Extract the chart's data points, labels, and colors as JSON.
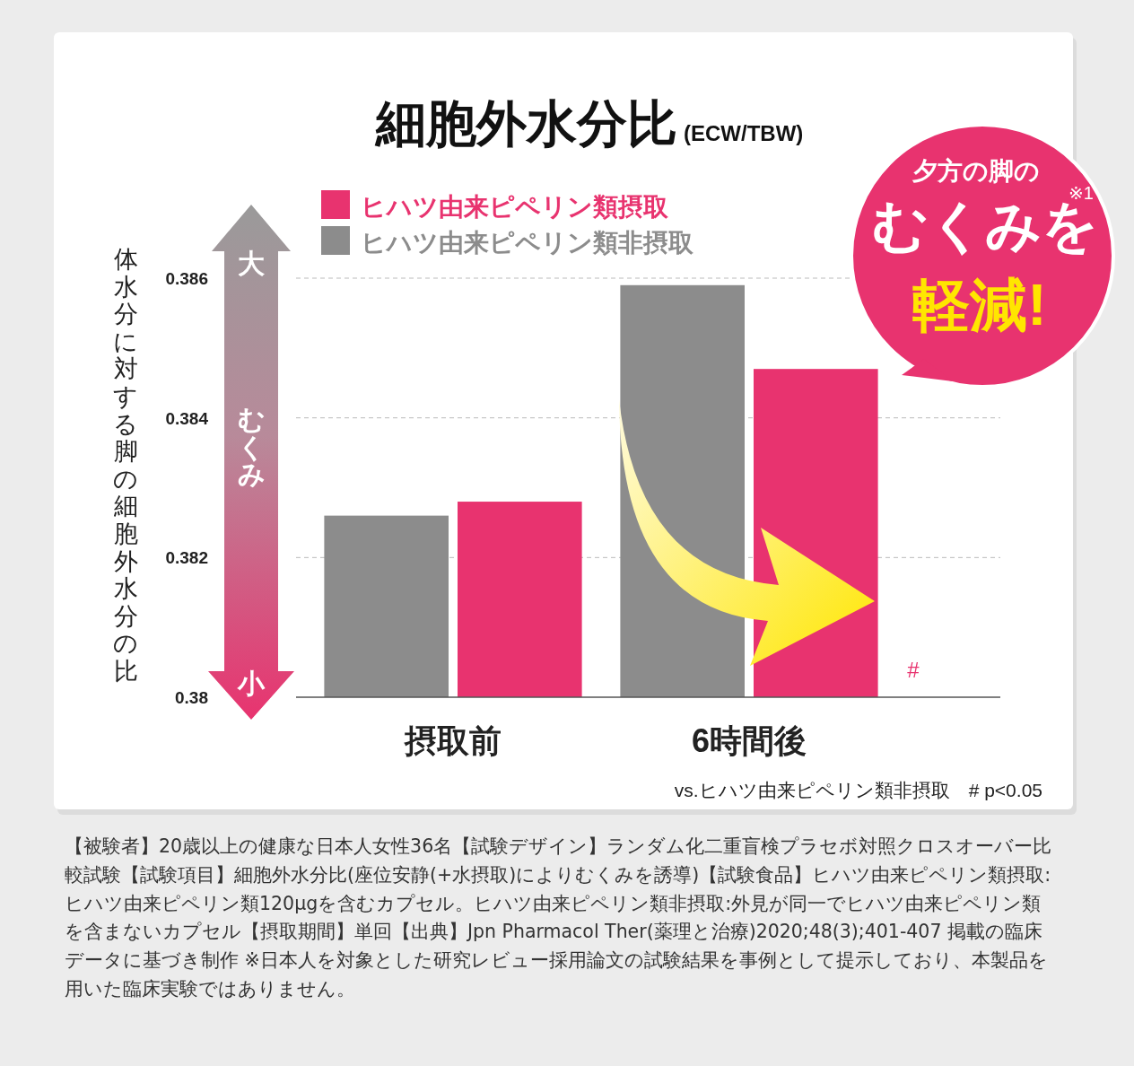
{
  "chart_data": {
    "type": "bar",
    "title": "細胞外水分比",
    "subtitle": "(ECW/TBW)",
    "ylabel": "体水分に対する脚の細胞外水分の比",
    "categories": [
      "摂取前",
      "6時間後"
    ],
    "series": [
      {
        "name": "ヒハツ由来ピペリン類非摂取",
        "color": "#8c8c8c",
        "values": [
          0.3826,
          0.3859
        ]
      },
      {
        "name": "ヒハツ由来ピペリン類摂取",
        "color": "#e8336f",
        "values": [
          0.3828,
          0.3847
        ]
      }
    ],
    "ylim": [
      0.38,
      0.386
    ],
    "yticks": [
      0.38,
      0.382,
      0.384,
      0.386
    ],
    "grid": "y",
    "legend": "top left",
    "annotations": [
      "大",
      "むくみ",
      "小",
      "夕方の脚の",
      "むくみを",
      "軽減!",
      "※1",
      "#",
      "vs.ヒハツ由来ピペリン類非摂取　# p<0.05",
      "【被験者】20歳以上の健康な日本人女性36名【試験デザイン】ランダム化二重盲検プラセボ対照クロスオーバー比較試験【試験項目】細胞外水分比(座位安静(+水摂取)によりむくみを誘導)【試験食品】ヒハツ由来ピペリン類摂取:ヒハツ由来ピペリン類120μgを含むカプセル。ヒハツ由来ピペリン類非摂取:外見が同一でヒハツ由来ピペリン類を含まないカプセル【摂取期間】単回【出典】Jpn Pharmacol Ther(薬理と治療)2020;48(3);401-407 掲載の臨床データに基づき制作 ※日本人を対象とした研究レビュー採用論文の試験結果を事例として提示しており、本製品を用いた臨床実験ではありません。"
    ]
  }
}
